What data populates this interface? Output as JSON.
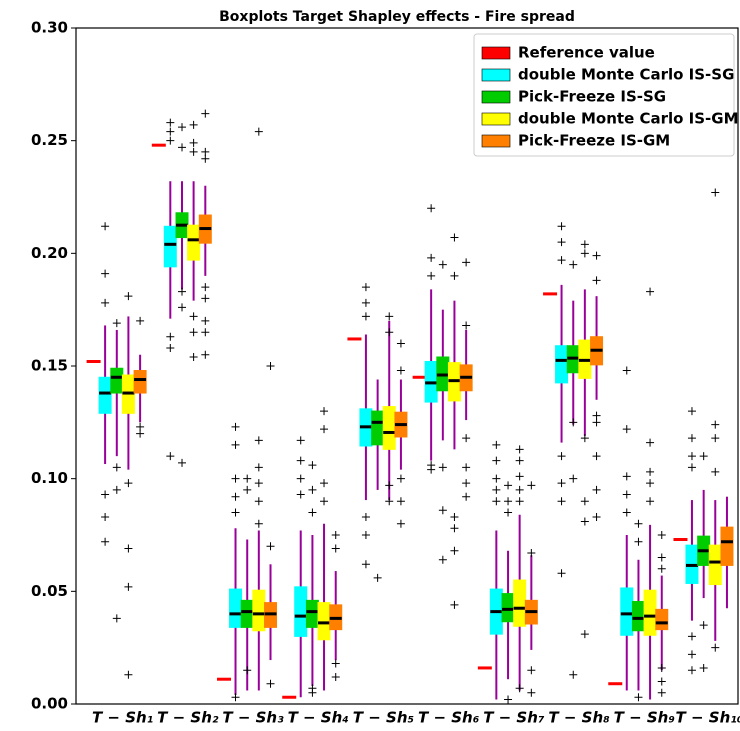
{
  "chart_data": {
    "type": "boxplot",
    "title": "Boxplots Target Shapley effects - Fire spread",
    "categories": [
      "T − Sh₁",
      "T − Sh₂",
      "T − Sh₃",
      "T − Sh₄",
      "T − Sh₅",
      "T − Sh₆",
      "T − Sh₇",
      "T − Sh₈",
      "T − Sh₉",
      "T − Sh₁₀"
    ],
    "ylim": [
      0,
      0.3
    ],
    "yticks": [
      {
        "value": 0,
        "label": "0.00"
      },
      0.05,
      {
        "value": 0.1,
        "label": "0.10"
      },
      0.15,
      {
        "value": 0.2,
        "label": "0.20"
      },
      0.25,
      {
        "value": 0.3,
        "label": "0.30"
      }
    ],
    "legend": "upper right",
    "whisker_color": "#990099",
    "reference": {
      "name": "Reference value",
      "color": "#ff0000",
      "values": [
        0.152,
        0.248,
        0.011,
        0.003,
        0.162,
        0.145,
        0.016,
        0.182,
        0.009,
        0.073
      ]
    },
    "series": [
      {
        "name": "double Monte Carlo IS-SG",
        "color": "#00ffff",
        "boxes": [
          {
            "whislo": 0.1065,
            "q1": 0.129,
            "med": 0.138,
            "q3": 0.145,
            "whishi": 0.168,
            "fliers": [
              0.212,
              0.191,
              0.178,
              0.093,
              0.083,
              0.072
            ]
          },
          {
            "whislo": 0.171,
            "q1": 0.194,
            "med": 0.204,
            "q3": 0.212,
            "whishi": 0.232,
            "fliers": [
              0.258,
              0.254,
              0.25,
              0.163,
              0.158,
              0.11
            ]
          },
          {
            "whislo": 0.004,
            "q1": 0.034,
            "med": 0.04,
            "q3": 0.051,
            "whishi": 0.078,
            "fliers": [
              0.123,
              0.115,
              0.1,
              0.092,
              0.085,
              0.003
            ]
          },
          {
            "whislo": 0.003,
            "q1": 0.03,
            "med": 0.039,
            "q3": 0.052,
            "whishi": 0.077,
            "fliers": [
              0.117,
              0.108,
              0.1,
              0.093
            ]
          },
          {
            "whislo": 0.0905,
            "q1": 0.1145,
            "med": 0.123,
            "q3": 0.131,
            "whishi": 0.164,
            "fliers": [
              0.185,
              0.178,
              0.172,
              0.083,
              0.075,
              0.062
            ]
          },
          {
            "whislo": 0.108,
            "q1": 0.134,
            "med": 0.1425,
            "q3": 0.152,
            "whishi": 0.184,
            "fliers": [
              0.22,
              0.198,
              0.19,
              0.106,
              0.104
            ]
          },
          {
            "whislo": 0.002,
            "q1": 0.031,
            "med": 0.041,
            "q3": 0.051,
            "whishi": 0.077,
            "fliers": [
              0.115,
              0.108,
              0.1,
              0.095,
              0.09
            ]
          },
          {
            "whislo": 0.116,
            "q1": 0.1425,
            "med": 0.1525,
            "q3": 0.159,
            "whishi": 0.186,
            "fliers": [
              0.212,
              0.205,
              0.197,
              0.11,
              0.098,
              0.09,
              0.058
            ]
          },
          {
            "whislo": 0.006,
            "q1": 0.0305,
            "med": 0.04,
            "q3": 0.0515,
            "whishi": 0.075,
            "fliers": [
              0.148,
              0.122,
              0.101,
              0.093,
              0.085
            ]
          },
          {
            "whislo": 0.037,
            "q1": 0.0535,
            "med": 0.0615,
            "q3": 0.0705,
            "whishi": 0.0905,
            "fliers": [
              0.13,
              0.118,
              0.11,
              0.105,
              0.03,
              0.022,
              0.015
            ]
          }
        ]
      },
      {
        "name": "Pick-Freeze IS-SG",
        "color": "#00cc00",
        "boxes": [
          {
            "whislo": 0.11,
            "q1": 0.138,
            "med": 0.145,
            "q3": 0.149,
            "whishi": 0.166,
            "fliers": [
              0.169,
              0.105,
              0.095,
              0.038
            ]
          },
          {
            "whislo": 0.184,
            "q1": 0.207,
            "med": 0.2125,
            "q3": 0.218,
            "whishi": 0.232,
            "fliers": [
              0.256,
              0.247,
              0.183,
              0.176,
              0.107
            ]
          },
          {
            "whislo": 0.006,
            "q1": 0.034,
            "med": 0.041,
            "q3": 0.046,
            "whishi": 0.073,
            "fliers": [
              0.1,
              0.095,
              0.015
            ]
          },
          {
            "whislo": 0.008,
            "q1": 0.034,
            "med": 0.041,
            "q3": 0.046,
            "whishi": 0.075,
            "fliers": [
              0.106,
              0.095,
              0.085,
              0.007,
              0.005
            ]
          },
          {
            "whislo": 0.095,
            "q1": 0.115,
            "med": 0.125,
            "q3": 0.13,
            "whishi": 0.144,
            "fliers": [
              0.056
            ]
          },
          {
            "whislo": 0.117,
            "q1": 0.139,
            "med": 0.146,
            "q3": 0.154,
            "whishi": 0.175,
            "fliers": [
              0.195,
              0.105,
              0.086,
              0.064
            ]
          },
          {
            "whislo": 0.011,
            "q1": 0.0365,
            "med": 0.042,
            "q3": 0.049,
            "whishi": 0.068,
            "fliers": [
              0.097,
              0.09,
              0.085,
              0.002
            ]
          },
          {
            "whislo": 0.124,
            "q1": 0.147,
            "med": 0.1535,
            "q3": 0.159,
            "whishi": 0.179,
            "fliers": [
              0.195,
              0.125,
              0.1,
              0.013
            ]
          },
          {
            "whislo": 0.006,
            "q1": 0.0325,
            "med": 0.038,
            "q3": 0.0455,
            "whishi": 0.064,
            "fliers": [
              0.08,
              0.072,
              0.003
            ]
          },
          {
            "whislo": 0.047,
            "q1": 0.0615,
            "med": 0.068,
            "q3": 0.0745,
            "whishi": 0.095,
            "fliers": [
              0.11,
              0.035,
              0.016
            ]
          }
        ]
      },
      {
        "name": "double Monte Carlo IS-GM",
        "color": "#ffff00",
        "boxes": [
          {
            "whislo": 0.104,
            "q1": 0.129,
            "med": 0.138,
            "q3": 0.146,
            "whishi": 0.172,
            "fliers": [
              0.181,
              0.098,
              0.069,
              0.052,
              0.013
            ]
          },
          {
            "whislo": 0.179,
            "q1": 0.197,
            "med": 0.206,
            "q3": 0.2125,
            "whishi": 0.232,
            "fliers": [
              0.257,
              0.249,
              0.245,
              0.172,
              0.165,
              0.154
            ]
          },
          {
            "whislo": 0.006,
            "q1": 0.0325,
            "med": 0.04,
            "q3": 0.0505,
            "whishi": 0.077,
            "fliers": [
              0.254,
              0.117,
              0.105,
              0.098,
              0.09,
              0.08
            ]
          },
          {
            "whislo": 0.006,
            "q1": 0.0285,
            "med": 0.036,
            "q3": 0.045,
            "whishi": 0.08,
            "fliers": [
              0.13,
              0.122,
              0.098,
              0.09
            ]
          },
          {
            "whislo": 0.0905,
            "q1": 0.113,
            "med": 0.1205,
            "q3": 0.132,
            "whishi": 0.17,
            "fliers": [
              0.172,
              0.165,
              0.097,
              0.09
            ]
          },
          {
            "whislo": 0.113,
            "q1": 0.1345,
            "med": 0.1435,
            "q3": 0.1515,
            "whishi": 0.179,
            "fliers": [
              0.207,
              0.19,
              0.083,
              0.078,
              0.068,
              0.044
            ]
          },
          {
            "whislo": 0.006,
            "q1": 0.0345,
            "med": 0.0425,
            "q3": 0.055,
            "whishi": 0.084,
            "fliers": [
              0.113,
              0.108,
              0.101,
              0.095,
              0.09,
              0.007
            ]
          },
          {
            "whislo": 0.119,
            "q1": 0.1445,
            "med": 0.1525,
            "q3": 0.1615,
            "whishi": 0.184,
            "fliers": [
              0.204,
              0.2,
              0.118,
              0.09,
              0.081,
              0.031
            ]
          },
          {
            "whislo": 0.002,
            "q1": 0.0305,
            "med": 0.039,
            "q3": 0.0505,
            "whishi": 0.0795,
            "fliers": [
              0.183,
              0.116,
              0.103,
              0.098,
              0.09
            ]
          },
          {
            "whislo": 0.028,
            "q1": 0.053,
            "med": 0.063,
            "q3": 0.0705,
            "whishi": 0.0905,
            "fliers": [
              0.227,
              0.124,
              0.118,
              0.103,
              0.025
            ]
          }
        ]
      },
      {
        "name": "Pick-Freeze IS-GM",
        "color": "#ff8000",
        "boxes": [
          {
            "whislo": 0.125,
            "q1": 0.138,
            "med": 0.144,
            "q3": 0.148,
            "whishi": 0.155,
            "fliers": [
              0.17,
              0.123,
              0.12
            ]
          },
          {
            "whislo": 0.19,
            "q1": 0.2045,
            "med": 0.211,
            "q3": 0.217,
            "whishi": 0.23,
            "fliers": [
              0.262,
              0.245,
              0.242,
              0.185,
              0.18,
              0.17,
              0.165,
              0.155
            ]
          },
          {
            "whislo": 0.0195,
            "q1": 0.034,
            "med": 0.04,
            "q3": 0.045,
            "whishi": 0.062,
            "fliers": [
              0.15,
              0.07,
              0.009
            ]
          },
          {
            "whislo": 0.0195,
            "q1": 0.033,
            "med": 0.038,
            "q3": 0.044,
            "whishi": 0.059,
            "fliers": [
              0.075,
              0.069,
              0.018,
              0.012
            ]
          },
          {
            "whislo": 0.104,
            "q1": 0.1185,
            "med": 0.124,
            "q3": 0.1295,
            "whishi": 0.144,
            "fliers": [
              0.16,
              0.148,
              0.1,
              0.09,
              0.08
            ]
          },
          {
            "whislo": 0.126,
            "q1": 0.139,
            "med": 0.145,
            "q3": 0.1505,
            "whishi": 0.166,
            "fliers": [
              0.196,
              0.168,
              0.118,
              0.105,
              0.098,
              0.092
            ]
          },
          {
            "whislo": 0.024,
            "q1": 0.0355,
            "med": 0.041,
            "q3": 0.046,
            "whishi": 0.066,
            "fliers": [
              0.097,
              0.067,
              0.015,
              0.005
            ]
          },
          {
            "whislo": 0.135,
            "q1": 0.1505,
            "med": 0.157,
            "q3": 0.163,
            "whishi": 0.181,
            "fliers": [
              0.199,
              0.188,
              0.128,
              0.125,
              0.11,
              0.095,
              0.083
            ]
          },
          {
            "whislo": 0.015,
            "q1": 0.033,
            "med": 0.036,
            "q3": 0.042,
            "whishi": 0.057,
            "fliers": [
              0.075,
              0.065,
              0.06,
              0.016,
              0.01,
              0.005
            ]
          },
          {
            "whislo": 0.0425,
            "q1": 0.0615,
            "med": 0.072,
            "q3": 0.0785,
            "whishi": 0.092,
            "fliers": []
          }
        ]
      }
    ]
  }
}
